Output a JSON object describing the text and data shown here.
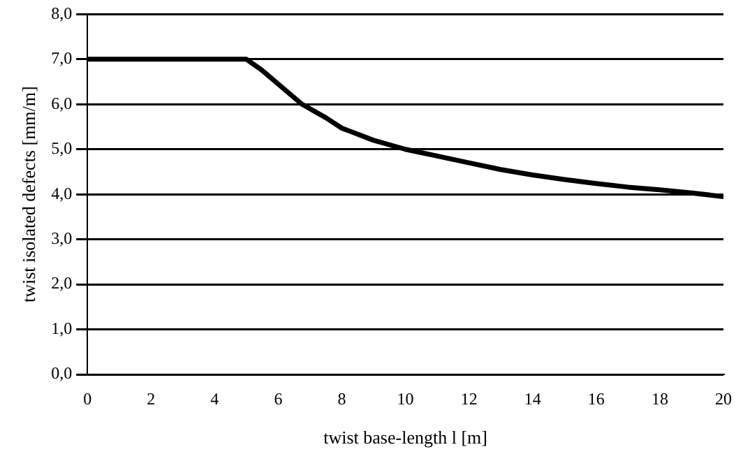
{
  "chart_data": {
    "type": "line",
    "xlabel": "twist base-length l [m]",
    "ylabel": "twist isolated defects [mm/m]",
    "x": [
      0,
      5,
      5.5,
      6,
      6.75,
      7.5,
      8,
      9,
      10,
      11,
      12,
      13,
      14,
      15,
      16,
      17,
      18,
      19,
      20
    ],
    "series": [
      {
        "color": "#000000",
        "values": [
          7,
          7,
          6.75,
          6.45,
          6,
          5.7,
          5.47,
          5.2,
          5,
          4.85,
          4.7,
          4.55,
          4.43,
          4.33,
          4.24,
          4.16,
          4.1,
          4.03,
          3.95
        ]
      }
    ],
    "xlim": [
      0,
      20
    ],
    "xticks": [
      0,
      2,
      4,
      6,
      8,
      10,
      12,
      14,
      16,
      18,
      20
    ],
    "ylim": [
      0,
      8
    ],
    "yticks": [
      {
        "value": 0,
        "label": "0,0"
      },
      {
        "value": 1,
        "label": "1,0"
      },
      {
        "value": 2,
        "label": "2,0"
      },
      {
        "value": 3,
        "label": "3,0"
      },
      {
        "value": 4,
        "label": "4,0"
      },
      {
        "value": 5,
        "label": "5,0"
      },
      {
        "value": 6,
        "label": "6,0"
      },
      {
        "value": 7,
        "label": "7,0"
      },
      {
        "value": 8,
        "label": "8,0"
      }
    ],
    "grid": "y",
    "legend": false,
    "marker": "none",
    "line_style": "solid"
  }
}
